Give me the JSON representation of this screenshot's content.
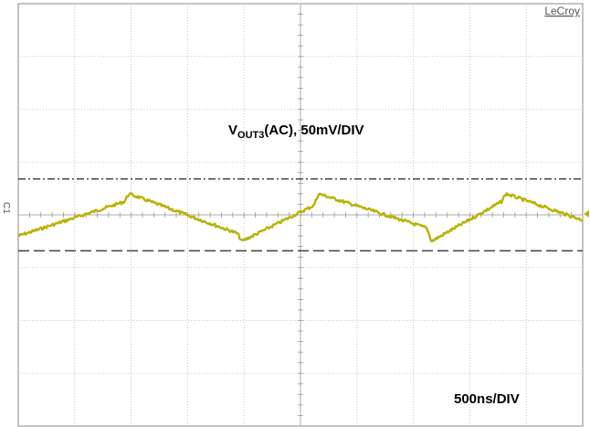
{
  "brand": "LeCroy",
  "chart_data": {
    "type": "line",
    "title": "",
    "channel_label": {
      "base": "V",
      "sub": "OUT3",
      "rest": "(AC), 50mV/DIV"
    },
    "timebase_label": "500ns/DIV",
    "channel_marker": "C1",
    "h_divisions": 10,
    "v_divisions": 8,
    "volts_per_div_mV": 50,
    "time_per_div_ns": 500,
    "xlim_div": [
      0,
      10
    ],
    "ylim_div": [
      -4,
      4
    ],
    "grid": true,
    "trace_color": "#b8b200",
    "x_div": [
      0,
      1.88,
      1.96,
      3.88,
      3.96,
      5.24,
      5.32,
      7.24,
      7.32,
      8.56,
      8.64,
      10
    ],
    "y_div": [
      -0.4,
      0.25,
      0.4,
      -0.35,
      -0.5,
      0.18,
      0.4,
      -0.25,
      -0.5,
      0.25,
      0.4,
      -0.1
    ],
    "cursor_upper_div": 0.68,
    "cursor_lower_div": -0.68,
    "cursor_upper_style": "dash-dot",
    "cursor_lower_style": "dashed"
  }
}
